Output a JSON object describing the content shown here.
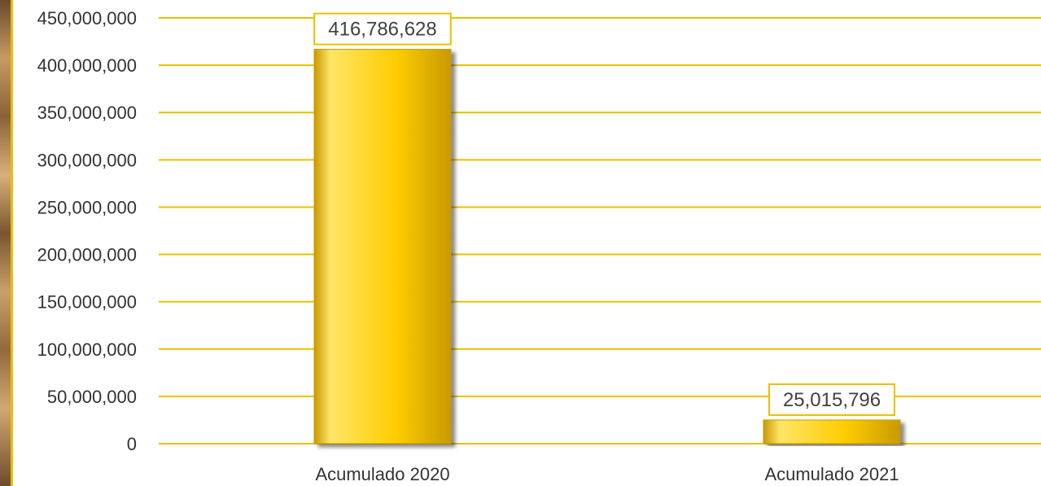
{
  "chart_data": {
    "type": "bar",
    "categories": [
      "Acumulado 2020",
      "Acumulado 2021"
    ],
    "values": [
      416786628,
      25015796
    ],
    "data_labels": [
      "416,786,628",
      "25,015,796"
    ],
    "ylim": [
      0,
      450000000
    ],
    "yticks": [
      0,
      50000000,
      100000000,
      150000000,
      200000000,
      250000000,
      300000000,
      350000000,
      400000000,
      450000000
    ],
    "ytick_labels": [
      "0",
      "50,000,000",
      "100,000,000",
      "150,000,000",
      "200,000,000",
      "250,000,000",
      "300,000,000",
      "350,000,000",
      "400,000,000",
      "450,000,000"
    ],
    "grid": true,
    "legend": "none",
    "colors": {
      "bar": "#ffcc00",
      "bar_dark": "#c89a00",
      "bar_light": "#ffe566",
      "grid": "#e8c000",
      "label_border": "#e8c000",
      "text": "#333333"
    }
  }
}
